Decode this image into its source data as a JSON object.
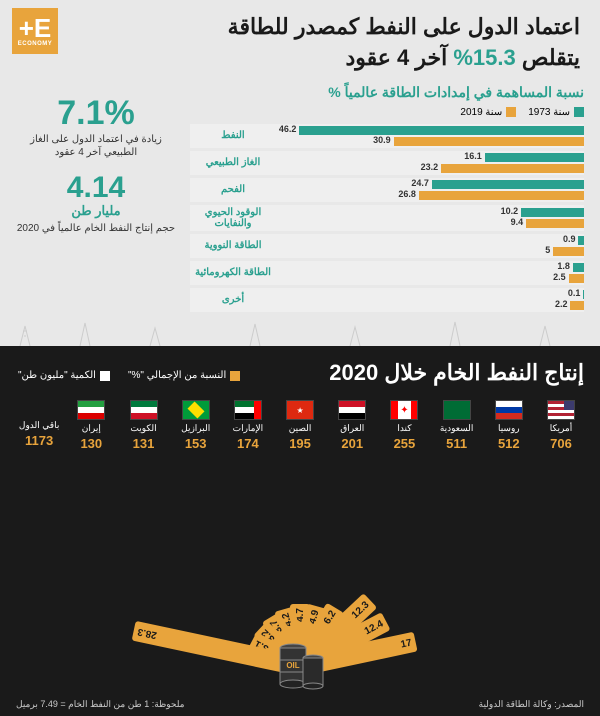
{
  "logo": {
    "letter": "E+",
    "word": "ECONOMY"
  },
  "headline": {
    "line1": "اعتماد الدول على النفط كمصدر للطاقة",
    "line2_pre": "يتقلص ",
    "line2_accent": "15.3%",
    "line2_post": " آخر 4 عقود"
  },
  "stats": [
    {
      "big": "7.1%",
      "desc": "زيادة في اعتماد الدول على الغاز الطبيعي آخر 4 عقود"
    },
    {
      "big": "4.14",
      "unit": "مليار طن",
      "desc": "حجم إنتاج النفط الخام عالمياً في 2020"
    }
  ],
  "energy_chart": {
    "title": "نسبة المساهمة في إمدادات الطاقة عالمياً %",
    "legend": [
      {
        "label": "سنة 1973",
        "color": "#2aa08f"
      },
      {
        "label": "سنة 2019",
        "color": "#e8a43c"
      }
    ],
    "max": 50,
    "rows": [
      {
        "label": "النفط",
        "a": 46.2,
        "b": 30.9
      },
      {
        "label": "الغاز الطبيعي",
        "a": 16.1,
        "b": 23.2
      },
      {
        "label": "الفحم",
        "a": 24.7,
        "b": 26.8
      },
      {
        "label": "الوقود الحيوي والنفايات",
        "a": 10.2,
        "b": 9.4
      },
      {
        "label": "الطاقة النووية",
        "a": 0.9,
        "b": 5
      },
      {
        "label": "الطاقة الكهرومائية",
        "a": 1.8,
        "b": 2.5
      },
      {
        "label": "أخرى",
        "a": 0.1,
        "b": 2.2
      }
    ],
    "color_a": "#2aa08f",
    "color_b": "#e8a43c"
  },
  "bottom": {
    "title": "إنتاج النفط الخام خلال 2020",
    "legend": [
      {
        "label": "النسبة من الإجمالي \"%\"",
        "color": "#e8a43c"
      },
      {
        "label": "الكمية \"مليون طن\"",
        "color": "#ffffff"
      }
    ],
    "countries": [
      {
        "name": "أمريكا",
        "val": 706,
        "flag": "us"
      },
      {
        "name": "روسيا",
        "val": 512,
        "flag": "ru"
      },
      {
        "name": "السعودية",
        "val": 511,
        "flag": "sa"
      },
      {
        "name": "كندا",
        "val": 255,
        "flag": "ca"
      },
      {
        "name": "العراق",
        "val": 201,
        "flag": "iq"
      },
      {
        "name": "الصين",
        "val": 195,
        "flag": "cn"
      },
      {
        "name": "الإمارات",
        "val": 174,
        "flag": "ae"
      },
      {
        "name": "البرازيل",
        "val": 153,
        "flag": "br"
      },
      {
        "name": "الكويت",
        "val": 131,
        "flag": "kw"
      },
      {
        "name": "إيران",
        "val": 130,
        "flag": "ir"
      }
    ],
    "rest": {
      "label": "باقي الدول",
      "val": 1173
    },
    "fan": {
      "color": "#e8a43c",
      "values": [
        17,
        12.4,
        12.3,
        6.2,
        4.9,
        4.7,
        4.2,
        3.7,
        3.2,
        3.1,
        28.3
      ],
      "max_height": 170
    },
    "note": "ملحوظة: 1 طن من النفط الخام = 7.49 برميل",
    "source": "المصدر: وكالة الطاقة الدولية",
    "barrel_label": "OIL"
  },
  "flags": {
    "us": [
      [
        "#3c3b6e",
        "#fff",
        "#b22234"
      ],
      [
        "#fff",
        "#b22234",
        "#fff"
      ],
      [
        "#b22234",
        "#fff",
        "#b22234"
      ]
    ],
    "ru": [
      "#fff",
      "#0039a6",
      "#d52b1e"
    ],
    "sa": [
      "#006c35"
    ],
    "ca": [
      "#ff0000",
      "#fff",
      "#ff0000"
    ],
    "iq": [
      "#ce1126",
      "#fff",
      "#000"
    ],
    "cn": [
      "#de2910"
    ],
    "ae": [
      "#00732f",
      "#fff",
      "#000"
    ],
    "br": [
      "#009b3a"
    ],
    "kw": [
      "#007a3d",
      "#fff",
      "#ce1126"
    ],
    "ir": [
      "#239f40",
      "#fff",
      "#da0000"
    ]
  }
}
